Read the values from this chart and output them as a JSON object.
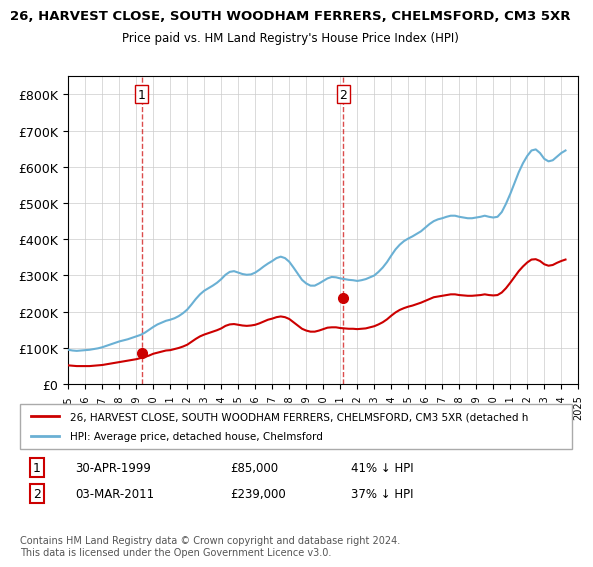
{
  "title_line1": "26, HARVEST CLOSE, SOUTH WOODHAM FERRERS, CHELMSFORD, CM3 5XR",
  "title_line2": "Price paid vs. HM Land Registry's House Price Index (HPI)",
  "hpi_color": "#6ab0d4",
  "price_color": "#cc0000",
  "background_color": "#ffffff",
  "grid_color": "#cccccc",
  "ylim": [
    0,
    850000
  ],
  "yticks": [
    0,
    100000,
    200000,
    300000,
    400000,
    500000,
    600000,
    700000,
    800000
  ],
  "ytick_labels": [
    "£0",
    "£100K",
    "£200K",
    "£300K",
    "£400K",
    "£500K",
    "£600K",
    "£700K",
    "£800K"
  ],
  "sale1_date": "30-APR-1999",
  "sale1_price": 85000,
  "sale1_pct": "41%",
  "sale1_year": 1999.33,
  "sale2_date": "03-MAR-2011",
  "sale2_price": 239000,
  "sale2_pct": "37%",
  "sale2_year": 2011.17,
  "legend_line1": "26, HARVEST CLOSE, SOUTH WOODHAM FERRERS, CHELMSFORD, CM3 5XR (detached h",
  "legend_line2": "HPI: Average price, detached house, Chelmsford",
  "footer": "Contains HM Land Registry data © Crown copyright and database right 2024.\nThis data is licensed under the Open Government Licence v3.0.",
  "hpi_data": {
    "years": [
      1995.0,
      1995.25,
      1995.5,
      1995.75,
      1996.0,
      1996.25,
      1996.5,
      1996.75,
      1997.0,
      1997.25,
      1997.5,
      1997.75,
      1998.0,
      1998.25,
      1998.5,
      1998.75,
      1999.0,
      1999.25,
      1999.5,
      1999.75,
      2000.0,
      2000.25,
      2000.5,
      2000.75,
      2001.0,
      2001.25,
      2001.5,
      2001.75,
      2002.0,
      2002.25,
      2002.5,
      2002.75,
      2003.0,
      2003.25,
      2003.5,
      2003.75,
      2004.0,
      2004.25,
      2004.5,
      2004.75,
      2005.0,
      2005.25,
      2005.5,
      2005.75,
      2006.0,
      2006.25,
      2006.5,
      2006.75,
      2007.0,
      2007.25,
      2007.5,
      2007.75,
      2008.0,
      2008.25,
      2008.5,
      2008.75,
      2009.0,
      2009.25,
      2009.5,
      2009.75,
      2010.0,
      2010.25,
      2010.5,
      2010.75,
      2011.0,
      2011.25,
      2011.5,
      2011.75,
      2012.0,
      2012.25,
      2012.5,
      2012.75,
      2013.0,
      2013.25,
      2013.5,
      2013.75,
      2014.0,
      2014.25,
      2014.5,
      2014.75,
      2015.0,
      2015.25,
      2015.5,
      2015.75,
      2016.0,
      2016.25,
      2016.5,
      2016.75,
      2017.0,
      2017.25,
      2017.5,
      2017.75,
      2018.0,
      2018.25,
      2018.5,
      2018.75,
      2019.0,
      2019.25,
      2019.5,
      2019.75,
      2020.0,
      2020.25,
      2020.5,
      2020.75,
      2021.0,
      2021.25,
      2021.5,
      2021.75,
      2022.0,
      2022.25,
      2022.5,
      2022.75,
      2023.0,
      2023.25,
      2023.5,
      2023.75,
      2024.0,
      2024.25
    ],
    "values": [
      95000,
      93000,
      92000,
      93000,
      94000,
      95000,
      97000,
      99000,
      102000,
      106000,
      110000,
      114000,
      118000,
      121000,
      124000,
      128000,
      132000,
      136000,
      142000,
      150000,
      158000,
      165000,
      170000,
      175000,
      178000,
      182000,
      188000,
      196000,
      206000,
      220000,
      235000,
      248000,
      258000,
      265000,
      272000,
      280000,
      290000,
      302000,
      310000,
      312000,
      308000,
      304000,
      302000,
      303000,
      308000,
      316000,
      325000,
      333000,
      340000,
      348000,
      352000,
      348000,
      338000,
      322000,
      305000,
      288000,
      278000,
      272000,
      272000,
      278000,
      285000,
      292000,
      296000,
      295000,
      292000,
      290000,
      288000,
      287000,
      285000,
      287000,
      290000,
      295000,
      300000,
      310000,
      322000,
      337000,
      355000,
      372000,
      385000,
      395000,
      402000,
      408000,
      415000,
      422000,
      432000,
      442000,
      450000,
      455000,
      458000,
      462000,
      465000,
      465000,
      462000,
      460000,
      458000,
      458000,
      460000,
      462000,
      465000,
      462000,
      460000,
      462000,
      475000,
      498000,
      525000,
      555000,
      585000,
      610000,
      630000,
      645000,
      648000,
      638000,
      622000,
      615000,
      618000,
      628000,
      638000,
      645000
    ]
  },
  "price_data": {
    "years": [
      1995.0,
      1995.25,
      1995.5,
      1995.75,
      1996.0,
      1996.25,
      1996.5,
      1996.75,
      1997.0,
      1997.25,
      1997.5,
      1997.75,
      1998.0,
      1998.25,
      1998.5,
      1998.75,
      1999.0,
      1999.25,
      1999.5,
      1999.75,
      2000.0,
      2000.25,
      2000.5,
      2000.75,
      2001.0,
      2001.25,
      2001.5,
      2001.75,
      2002.0,
      2002.25,
      2002.5,
      2002.75,
      2003.0,
      2003.25,
      2003.5,
      2003.75,
      2004.0,
      2004.25,
      2004.5,
      2004.75,
      2005.0,
      2005.25,
      2005.5,
      2005.75,
      2006.0,
      2006.25,
      2006.5,
      2006.75,
      2007.0,
      2007.25,
      2007.5,
      2007.75,
      2008.0,
      2008.25,
      2008.5,
      2008.75,
      2009.0,
      2009.25,
      2009.5,
      2009.75,
      2010.0,
      2010.25,
      2010.5,
      2010.75,
      2011.0,
      2011.25,
      2011.5,
      2011.75,
      2012.0,
      2012.25,
      2012.5,
      2012.75,
      2013.0,
      2013.25,
      2013.5,
      2013.75,
      2014.0,
      2014.25,
      2014.5,
      2014.75,
      2015.0,
      2015.25,
      2015.5,
      2015.75,
      2016.0,
      2016.25,
      2016.5,
      2016.75,
      2017.0,
      2017.25,
      2017.5,
      2017.75,
      2018.0,
      2018.25,
      2018.5,
      2018.75,
      2019.0,
      2019.25,
      2019.5,
      2019.75,
      2020.0,
      2020.25,
      2020.5,
      2020.75,
      2021.0,
      2021.25,
      2021.5,
      2021.75,
      2022.0,
      2022.25,
      2022.5,
      2022.75,
      2023.0,
      2023.25,
      2023.5,
      2023.75,
      2024.0,
      2024.25
    ],
    "values": [
      52000,
      51000,
      50000,
      50000,
      50000,
      50000,
      51000,
      52000,
      53000,
      55000,
      57000,
      59000,
      61000,
      63000,
      65000,
      67000,
      69000,
      72000,
      75000,
      79000,
      84000,
      87000,
      90000,
      93000,
      94000,
      97000,
      100000,
      104000,
      109000,
      117000,
      125000,
      132000,
      137000,
      141000,
      145000,
      149000,
      154000,
      161000,
      165000,
      166000,
      164000,
      162000,
      161000,
      162000,
      164000,
      168000,
      173000,
      178000,
      181000,
      185000,
      187000,
      185000,
      180000,
      171000,
      162000,
      153000,
      148000,
      145000,
      145000,
      148000,
      152000,
      156000,
      157000,
      157000,
      155000,
      154000,
      153000,
      153000,
      152000,
      153000,
      154000,
      157000,
      160000,
      165000,
      171000,
      179000,
      189000,
      198000,
      205000,
      210000,
      214000,
      217000,
      221000,
      225000,
      230000,
      235000,
      240000,
      242000,
      244000,
      246000,
      248000,
      248000,
      246000,
      245000,
      244000,
      244000,
      245000,
      246000,
      248000,
      246000,
      245000,
      246000,
      253000,
      265000,
      280000,
      296000,
      312000,
      325000,
      336000,
      344000,
      345000,
      340000,
      331000,
      327000,
      329000,
      335000,
      340000,
      344000
    ]
  }
}
